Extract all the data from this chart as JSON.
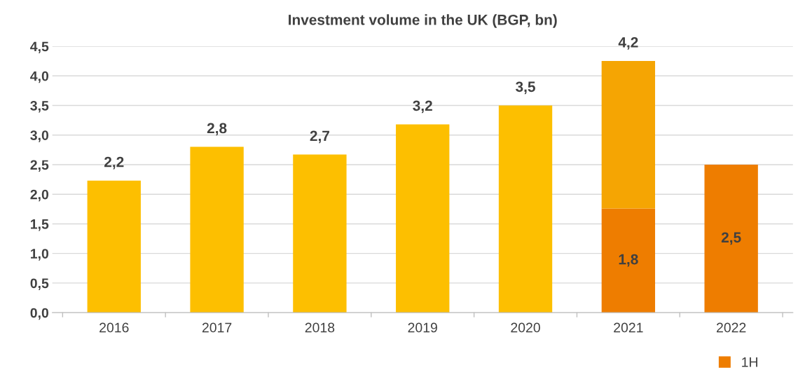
{
  "chart_data": {
    "type": "bar",
    "title": "Investment volume in the UK (BGP, bn)",
    "categories": [
      "2016",
      "2017",
      "2018",
      "2019",
      "2020",
      "2021",
      "2022"
    ],
    "stacked": true,
    "series": [
      {
        "name": "1H",
        "color": "#ee7d00",
        "values": [
          null,
          null,
          null,
          null,
          null,
          1.76,
          2.5
        ],
        "value_labels": [
          null,
          null,
          null,
          null,
          null,
          "1,8",
          "2,5"
        ]
      },
      {
        "colors": [
          "#fdbf00",
          "#fdbf00",
          "#fdbf00",
          "#fdbf00",
          "#fdbf00",
          "#f5a503",
          null
        ],
        "values": [
          2.23,
          2.8,
          2.67,
          3.18,
          3.5,
          2.49,
          null
        ]
      }
    ],
    "totals": [
      "2,2",
      "2,8",
      "2,7",
      "3,2",
      "3,5",
      "4,2",
      null
    ],
    "ylim": [
      0,
      4.5
    ],
    "yticks": [
      {
        "value": 0,
        "label": "0,0"
      },
      {
        "value": 0.5,
        "label": "0,5"
      },
      {
        "value": 1,
        "label": "1,0"
      },
      {
        "value": 1.5,
        "label": "1,5"
      },
      {
        "value": 2,
        "label": "2,0"
      },
      {
        "value": 2.5,
        "label": "2,5"
      },
      {
        "value": 3,
        "label": "3,0"
      },
      {
        "value": 3.5,
        "label": "3,5"
      },
      {
        "value": 4,
        "label": "4,0"
      },
      {
        "value": 4.5,
        "label": "4,5"
      }
    ],
    "grid": "y",
    "legend": "bottom right"
  }
}
